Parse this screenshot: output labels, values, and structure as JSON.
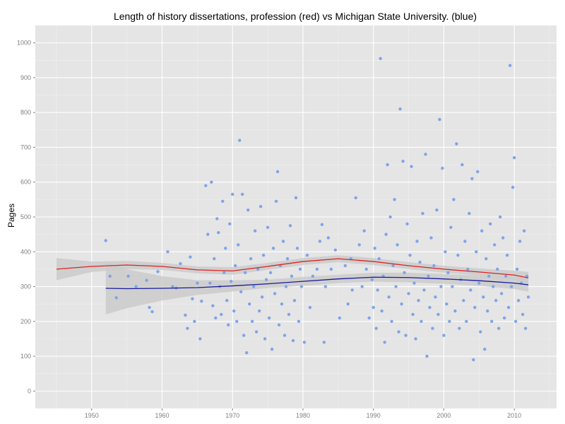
{
  "chart_data": {
    "type": "scatter",
    "title": "Length of history dissertations, profession (red) vs Michigan State University. (blue)",
    "xlabel": "",
    "ylabel": "Pages",
    "xlim": [
      1942,
      2016
    ],
    "ylim": [
      -50,
      1050
    ],
    "x_ticks": [
      1950,
      1960,
      1970,
      1980,
      1990,
      2000,
      2010
    ],
    "y_ticks": [
      0,
      100,
      200,
      300,
      400,
      500,
      600,
      700,
      800,
      900,
      1000
    ],
    "grid": true,
    "background": "#e5e5e5",
    "point_color": "#7fa4e6",
    "series": [
      {
        "type": "scatter",
        "points": [
          [
            1952,
            432
          ],
          [
            1952.6,
            330
          ],
          [
            1953.5,
            268
          ],
          [
            1955.2,
            330
          ],
          [
            1956.3,
            300
          ],
          [
            1957.8,
            318
          ],
          [
            1958.2,
            240
          ],
          [
            1958.6,
            228
          ],
          [
            1959.4,
            343
          ],
          [
            1960.8,
            400
          ],
          [
            1961.5,
            300
          ],
          [
            1962.0,
            296
          ],
          [
            1962.6,
            366
          ],
          [
            1963.3,
            218
          ],
          [
            1963.6,
            180
          ],
          [
            1964.0,
            385
          ],
          [
            1964.3,
            265
          ],
          [
            1964.6,
            200
          ],
          [
            1965.0,
            310
          ],
          [
            1965.4,
            150
          ],
          [
            1965.6,
            258
          ],
          [
            1966.2,
            590
          ],
          [
            1966.5,
            450
          ],
          [
            1966.8,
            310
          ],
          [
            1967.0,
            600
          ],
          [
            1967.2,
            245
          ],
          [
            1967.4,
            380
          ],
          [
            1967.6,
            210
          ],
          [
            1967.8,
            495
          ],
          [
            1968.0,
            455
          ],
          [
            1968.2,
            300
          ],
          [
            1968.4,
            220
          ],
          [
            1968.6,
            545
          ],
          [
            1968.8,
            340
          ],
          [
            1969.0,
            410
          ],
          [
            1969.2,
            260
          ],
          [
            1969.4,
            190
          ],
          [
            1969.6,
            480
          ],
          [
            1969.8,
            315
          ],
          [
            1970.0,
            565
          ],
          [
            1970.2,
            230
          ],
          [
            1970.4,
            360
          ],
          [
            1970.6,
            200
          ],
          [
            1970.8,
            420
          ],
          [
            1971.0,
            720
          ],
          [
            1971.2,
            285
          ],
          [
            1971.4,
            565
          ],
          [
            1971.6,
            160
          ],
          [
            1971.8,
            340
          ],
          [
            1972.0,
            110
          ],
          [
            1972.2,
            520
          ],
          [
            1972.4,
            250
          ],
          [
            1972.6,
            380
          ],
          [
            1972.8,
            200
          ],
          [
            1973.0,
            300
          ],
          [
            1973.2,
            460
          ],
          [
            1973.4,
            170
          ],
          [
            1973.6,
            350
          ],
          [
            1973.8,
            230
          ],
          [
            1974.0,
            530
          ],
          [
            1974.2,
            270
          ],
          [
            1974.4,
            390
          ],
          [
            1974.6,
            150
          ],
          [
            1974.8,
            320
          ],
          [
            1975.0,
            470
          ],
          [
            1975.2,
            210
          ],
          [
            1975.4,
            340
          ],
          [
            1975.6,
            120
          ],
          [
            1975.8,
            410
          ],
          [
            1976.0,
            280
          ],
          [
            1976.2,
            545
          ],
          [
            1976.4,
            630
          ],
          [
            1976.6,
            190
          ],
          [
            1976.8,
            360
          ],
          [
            1977.0,
            250
          ],
          [
            1977.2,
            430
          ],
          [
            1977.4,
            160
          ],
          [
            1977.6,
            300
          ],
          [
            1977.8,
            380
          ],
          [
            1978.0,
            220
          ],
          [
            1978.2,
            475
          ],
          [
            1978.4,
            330
          ],
          [
            1978.6,
            145
          ],
          [
            1978.8,
            260
          ],
          [
            1979.0,
            555
          ],
          [
            1979.2,
            410
          ],
          [
            1979.4,
            200
          ],
          [
            1979.6,
            350
          ],
          [
            1979.8,
            300
          ],
          [
            1980.2,
            140
          ],
          [
            1980.6,
            390
          ],
          [
            1981.0,
            240
          ],
          [
            1981.4,
            330
          ],
          [
            1982.0,
            350
          ],
          [
            1982.4,
            430
          ],
          [
            1982.7,
            478
          ],
          [
            1983.0,
            140
          ],
          [
            1983.2,
            300
          ],
          [
            1983.6,
            440
          ],
          [
            1984.0,
            350
          ],
          [
            1984.6,
            405
          ],
          [
            1985.2,
            210
          ],
          [
            1986.0,
            360
          ],
          [
            1986.4,
            250
          ],
          [
            1986.8,
            380
          ],
          [
            1987.0,
            290
          ],
          [
            1987.5,
            555
          ],
          [
            1988.0,
            420
          ],
          [
            1988.4,
            300
          ],
          [
            1988.7,
            460
          ],
          [
            1989.0,
            350
          ],
          [
            1989.4,
            210
          ],
          [
            1989.8,
            320
          ],
          [
            1990.0,
            240
          ],
          [
            1990.2,
            410
          ],
          [
            1990.4,
            180
          ],
          [
            1990.6,
            290
          ],
          [
            1990.8,
            380
          ],
          [
            1991.0,
            955
          ],
          [
            1991.2,
            230
          ],
          [
            1991.4,
            330
          ],
          [
            1991.6,
            140
          ],
          [
            1991.8,
            450
          ],
          [
            1992.0,
            650
          ],
          [
            1992.2,
            270
          ],
          [
            1992.4,
            500
          ],
          [
            1992.6,
            200
          ],
          [
            1992.8,
            360
          ],
          [
            1993.0,
            550
          ],
          [
            1993.2,
            300
          ],
          [
            1993.4,
            420
          ],
          [
            1993.6,
            170
          ],
          [
            1993.8,
            810
          ],
          [
            1994.0,
            250
          ],
          [
            1994.2,
            660
          ],
          [
            1994.4,
            340
          ],
          [
            1994.6,
            160
          ],
          [
            1994.8,
            480
          ],
          [
            1995.0,
            280
          ],
          [
            1995.2,
            390
          ],
          [
            1995.4,
            645
          ],
          [
            1995.6,
            220
          ],
          [
            1995.8,
            310
          ],
          [
            1996.0,
            150
          ],
          [
            1996.2,
            430
          ],
          [
            1996.4,
            260
          ],
          [
            1996.6,
            370
          ],
          [
            1996.8,
            200
          ],
          [
            1997.0,
            510
          ],
          [
            1997.2,
            290
          ],
          [
            1997.4,
            680
          ],
          [
            1997.6,
            100
          ],
          [
            1997.8,
            330
          ],
          [
            1998.0,
            240
          ],
          [
            1998.2,
            440
          ],
          [
            1998.4,
            180
          ],
          [
            1998.6,
            360
          ],
          [
            1998.8,
            270
          ],
          [
            1999.0,
            520
          ],
          [
            1999.2,
            220
          ],
          [
            1999.4,
            780
          ],
          [
            1999.6,
            300
          ],
          [
            1999.8,
            640
          ],
          [
            2000.0,
            160
          ],
          [
            2000.2,
            400
          ],
          [
            2000.4,
            250
          ],
          [
            2000.6,
            340
          ],
          [
            2000.8,
            200
          ],
          [
            2001.0,
            470
          ],
          [
            2001.2,
            300
          ],
          [
            2001.4,
            550
          ],
          [
            2001.6,
            230
          ],
          [
            2001.8,
            710
          ],
          [
            2002.0,
            390
          ],
          [
            2002.2,
            180
          ],
          [
            2002.4,
            320
          ],
          [
            2002.6,
            650
          ],
          [
            2002.8,
            260
          ],
          [
            2003.0,
            430
          ],
          [
            2003.2,
            200
          ],
          [
            2003.4,
            350
          ],
          [
            2003.6,
            510
          ],
          [
            2003.8,
            290
          ],
          [
            2004.0,
            610
          ],
          [
            2004.2,
            90
          ],
          [
            2004.4,
            240
          ],
          [
            2004.6,
            400
          ],
          [
            2004.8,
            630
          ],
          [
            2005.0,
            310
          ],
          [
            2005.2,
            170
          ],
          [
            2005.4,
            460
          ],
          [
            2005.6,
            270
          ],
          [
            2005.8,
            120
          ],
          [
            2006.0,
            380
          ],
          [
            2006.2,
            230
          ],
          [
            2006.4,
            330
          ],
          [
            2006.6,
            480
          ],
          [
            2006.8,
            200
          ],
          [
            2007.0,
            300
          ],
          [
            2007.2,
            420
          ],
          [
            2007.4,
            260
          ],
          [
            2007.6,
            350
          ],
          [
            2007.8,
            180
          ],
          [
            2008.0,
            500
          ],
          [
            2008.2,
            280
          ],
          [
            2008.4,
            440
          ],
          [
            2008.6,
            210
          ],
          [
            2008.8,
            330
          ],
          [
            2009.0,
            390
          ],
          [
            2009.2,
            240
          ],
          [
            2009.4,
            935
          ],
          [
            2009.6,
            300
          ],
          [
            2009.8,
            585
          ],
          [
            2010.0,
            670
          ],
          [
            2010.2,
            200
          ],
          [
            2010.4,
            350
          ],
          [
            2010.6,
            260
          ],
          [
            2010.8,
            430
          ],
          [
            2011.0,
            310
          ],
          [
            2011.2,
            220
          ],
          [
            2011.4,
            460
          ],
          [
            2011.6,
            180
          ],
          [
            2011.8,
            330
          ],
          [
            2012.0,
            270
          ]
        ]
      },
      {
        "type": "line",
        "color": "#dd2222",
        "points": [
          [
            1945,
            350
          ],
          [
            1950,
            358
          ],
          [
            1955,
            362
          ],
          [
            1960,
            358
          ],
          [
            1965,
            348
          ],
          [
            1970,
            345
          ],
          [
            1975,
            358
          ],
          [
            1980,
            372
          ],
          [
            1985,
            380
          ],
          [
            1990,
            372
          ],
          [
            1995,
            360
          ],
          [
            2000,
            350
          ],
          [
            2005,
            342
          ],
          [
            2010,
            333
          ],
          [
            2012,
            325
          ]
        ]
      },
      {
        "type": "line",
        "color": "#1a1a99",
        "points": [
          [
            1952,
            295
          ],
          [
            1955,
            294
          ],
          [
            1960,
            295
          ],
          [
            1965,
            297
          ],
          [
            1970,
            302
          ],
          [
            1975,
            308
          ],
          [
            1980,
            315
          ],
          [
            1985,
            322
          ],
          [
            1990,
            327
          ],
          [
            1995,
            326
          ],
          [
            2000,
            322
          ],
          [
            2005,
            317
          ],
          [
            2010,
            310
          ],
          [
            2012,
            305
          ]
        ]
      }
    ],
    "bands": [
      {
        "color": "#cbcbcb",
        "points": [
          [
            1945,
            382,
            318
          ],
          [
            1950,
            372,
            342
          ],
          [
            1955,
            374,
            350
          ],
          [
            1960,
            368,
            348
          ],
          [
            1965,
            358,
            338
          ],
          [
            1970,
            356,
            334
          ],
          [
            1975,
            368,
            348
          ],
          [
            1980,
            382,
            362
          ],
          [
            1985,
            390,
            370
          ],
          [
            1990,
            382,
            362
          ],
          [
            1995,
            370,
            350
          ],
          [
            2000,
            360,
            340
          ],
          [
            2005,
            352,
            332
          ],
          [
            2010,
            346,
            320
          ],
          [
            2012,
            342,
            308
          ]
        ]
      },
      {
        "color": "#cbcbcb",
        "points": [
          [
            1952,
            370,
            220
          ],
          [
            1955,
            350,
            238
          ],
          [
            1960,
            330,
            260
          ],
          [
            1965,
            318,
            276
          ],
          [
            1970,
            318,
            286
          ],
          [
            1975,
            320,
            296
          ],
          [
            1980,
            328,
            302
          ],
          [
            1985,
            334,
            310
          ],
          [
            1990,
            340,
            314
          ],
          [
            1995,
            340,
            312
          ],
          [
            2000,
            336,
            308
          ],
          [
            2005,
            332,
            302
          ],
          [
            2010,
            327,
            293
          ],
          [
            2012,
            325,
            285
          ]
        ]
      }
    ]
  }
}
